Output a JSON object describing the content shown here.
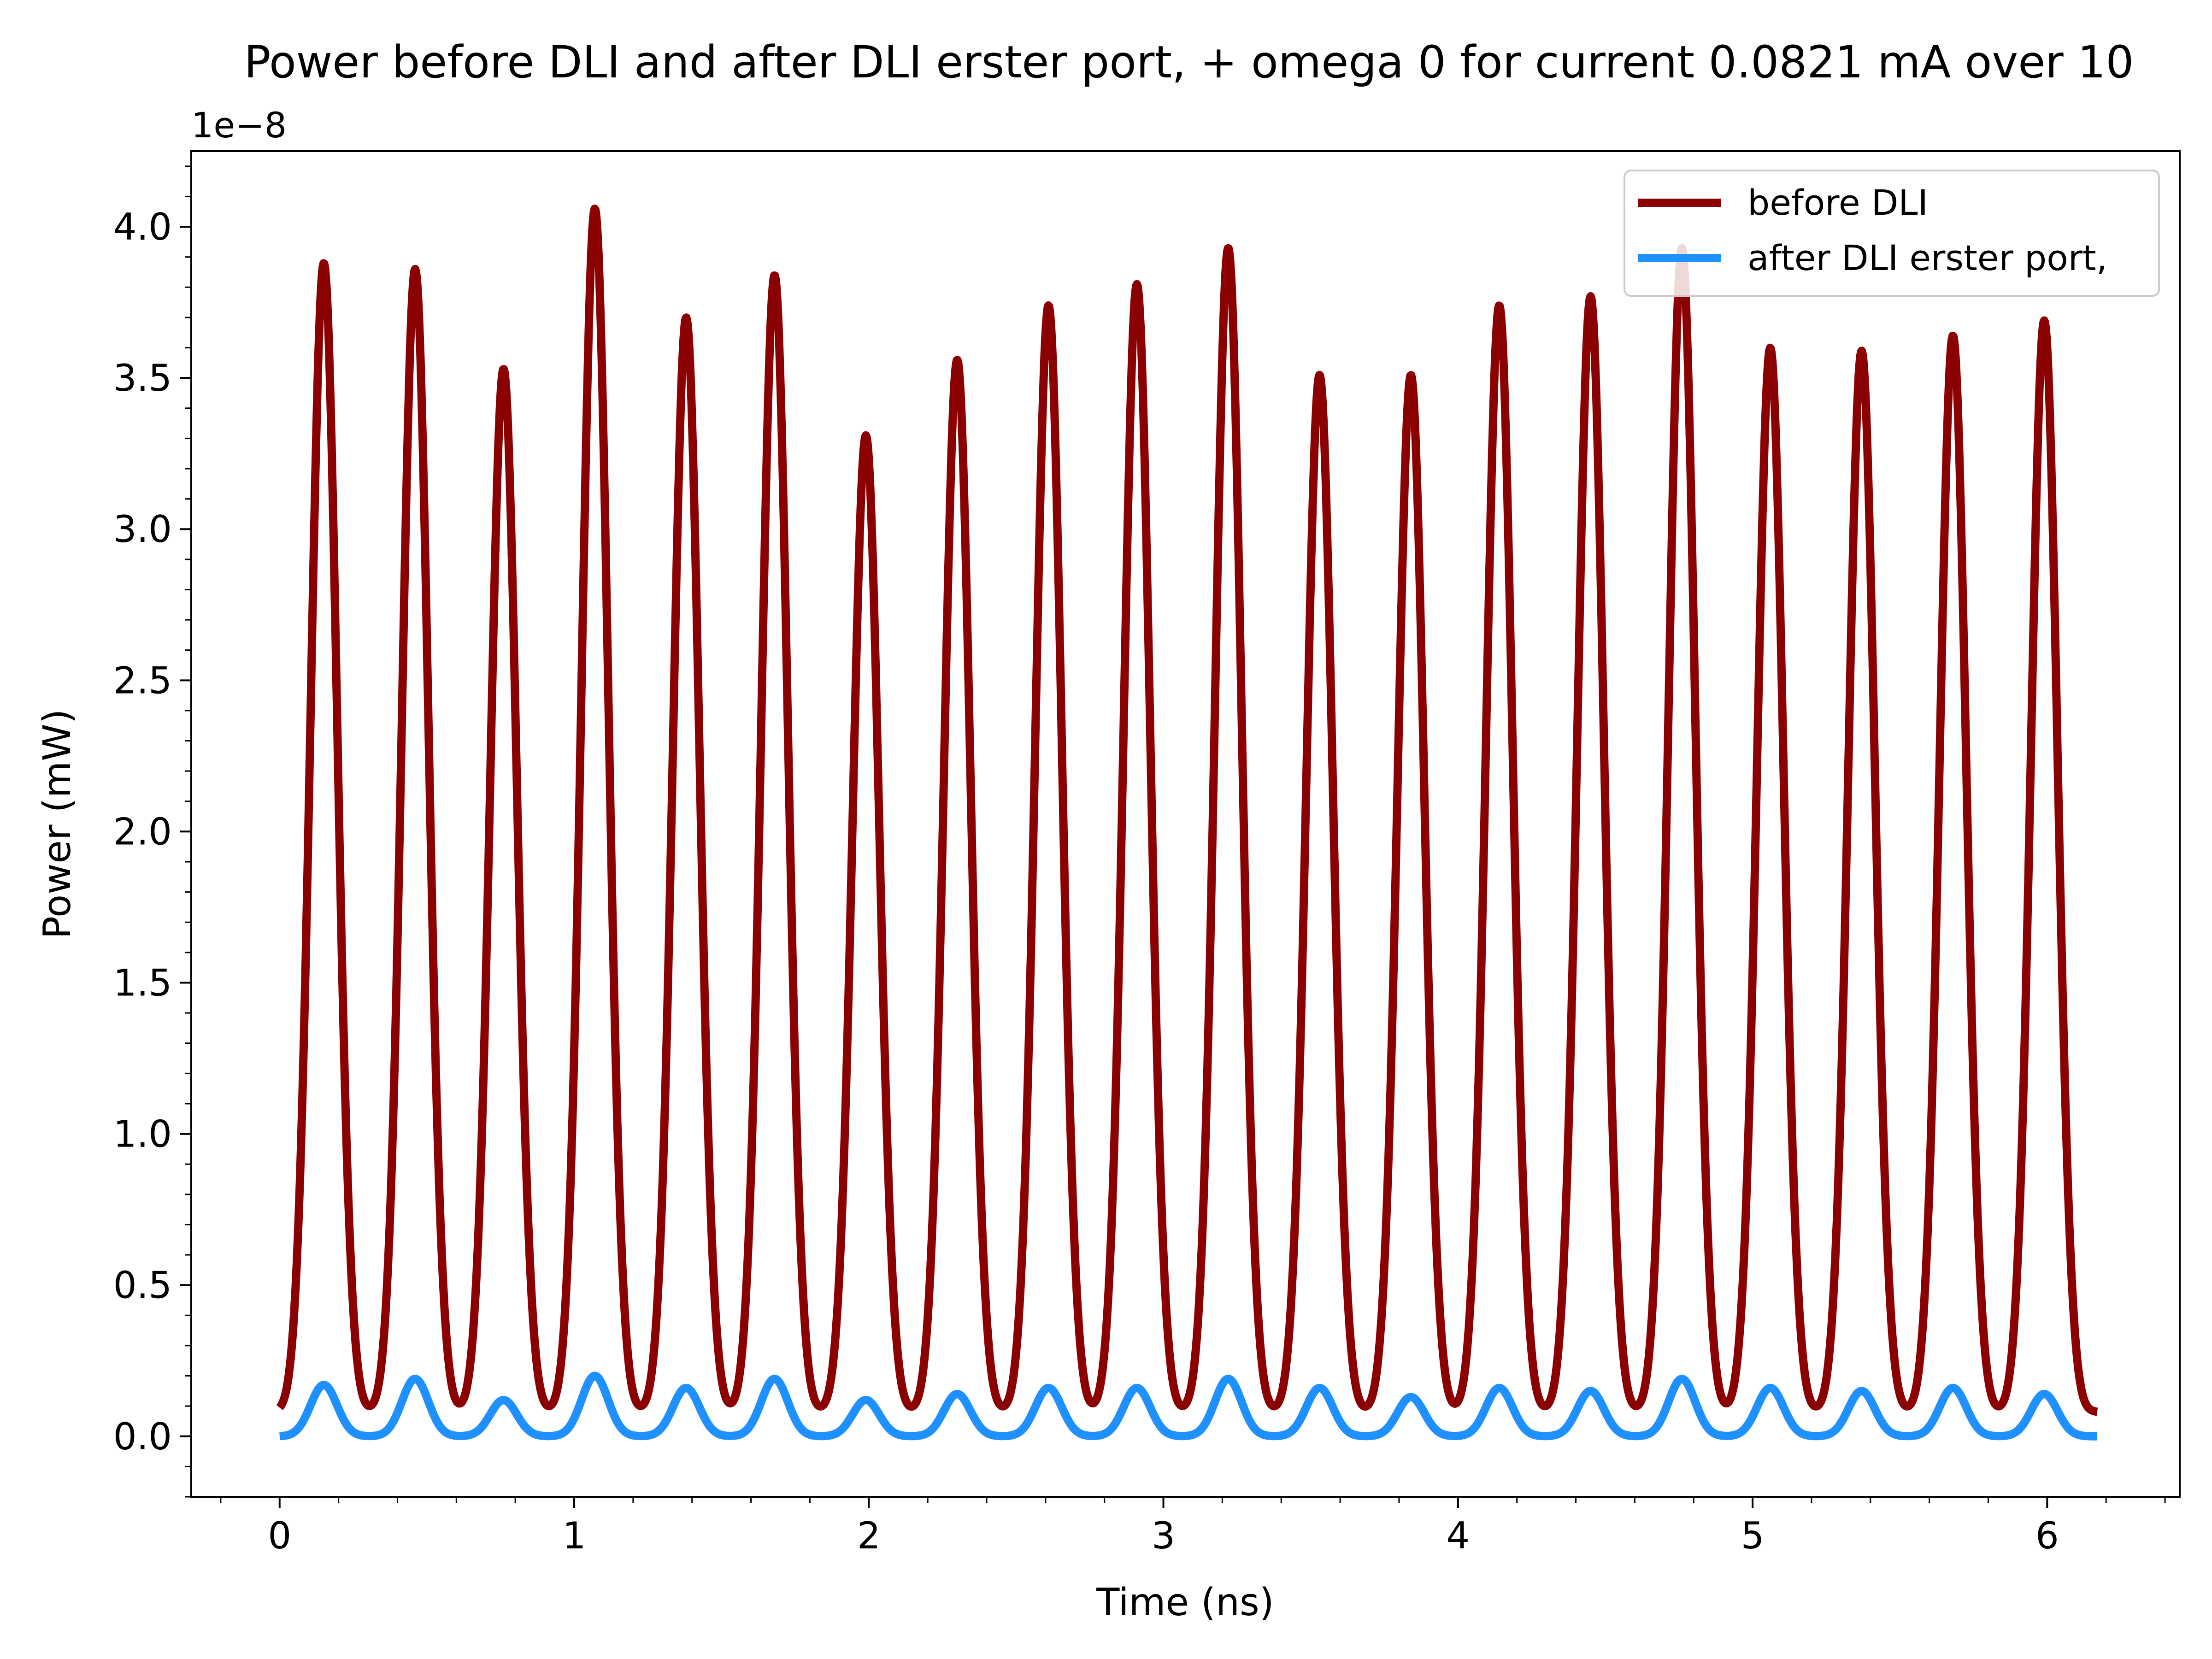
{
  "chart_data": {
    "type": "line",
    "title": "Power before DLI and after DLI erster port, + omega 0 for current 0.0821 mA over 10",
    "xlabel": "Time (ns)",
    "ylabel": "Power (mW)",
    "y_offset_label": "1e−8",
    "xlim": [
      -0.3,
      6.45
    ],
    "ylim": [
      -0.2,
      4.25
    ],
    "y_unit_scale": 1e-08,
    "x_ticks": [
      0,
      1,
      2,
      3,
      4,
      5,
      6
    ],
    "x_tick_labels": [
      "0",
      "1",
      "2",
      "3",
      "4",
      "5",
      "6"
    ],
    "y_ticks": [
      0.0,
      0.5,
      1.0,
      1.5,
      2.0,
      2.5,
      3.0,
      3.5,
      4.0
    ],
    "y_tick_labels": [
      "0.0",
      "0.5",
      "1.0",
      "1.5",
      "2.0",
      "2.5",
      "3.0",
      "3.5",
      "4.0"
    ],
    "grid": false,
    "legend_position": "top-right",
    "x_range": [
      0,
      6.17
    ],
    "pulse_width_ns": 0.045,
    "series": [
      {
        "name": "before DLI",
        "color": "#8b0000",
        "baseline": 0.08,
        "peaks_x": [
          0.15,
          0.46,
          0.76,
          1.07,
          1.38,
          1.68,
          1.99,
          2.3,
          2.61,
          2.91,
          3.22,
          3.53,
          3.84,
          4.14,
          4.45,
          4.76,
          5.06,
          5.37,
          5.68,
          5.99
        ],
        "peaks_y": [
          3.88,
          3.86,
          3.53,
          4.06,
          3.7,
          3.84,
          3.31,
          3.56,
          3.74,
          3.81,
          3.93,
          3.51,
          3.51,
          3.74,
          3.77,
          3.93,
          3.6,
          3.59,
          3.64,
          3.69
        ],
        "minor_bumps_y": 0.1
      },
      {
        "name": "after DLI erster port,",
        "color": "#1e90ff",
        "baseline": 0.0,
        "peaks_x": [
          0.15,
          0.46,
          0.76,
          1.07,
          1.38,
          1.68,
          1.99,
          2.3,
          2.61,
          2.91,
          3.22,
          3.53,
          3.84,
          4.14,
          4.45,
          4.76,
          5.06,
          5.37,
          5.68,
          5.99
        ],
        "peaks_y": [
          0.17,
          0.19,
          0.12,
          0.2,
          0.16,
          0.19,
          0.12,
          0.14,
          0.16,
          0.16,
          0.19,
          0.16,
          0.13,
          0.16,
          0.15,
          0.19,
          0.16,
          0.15,
          0.16,
          0.14
        ]
      }
    ]
  }
}
